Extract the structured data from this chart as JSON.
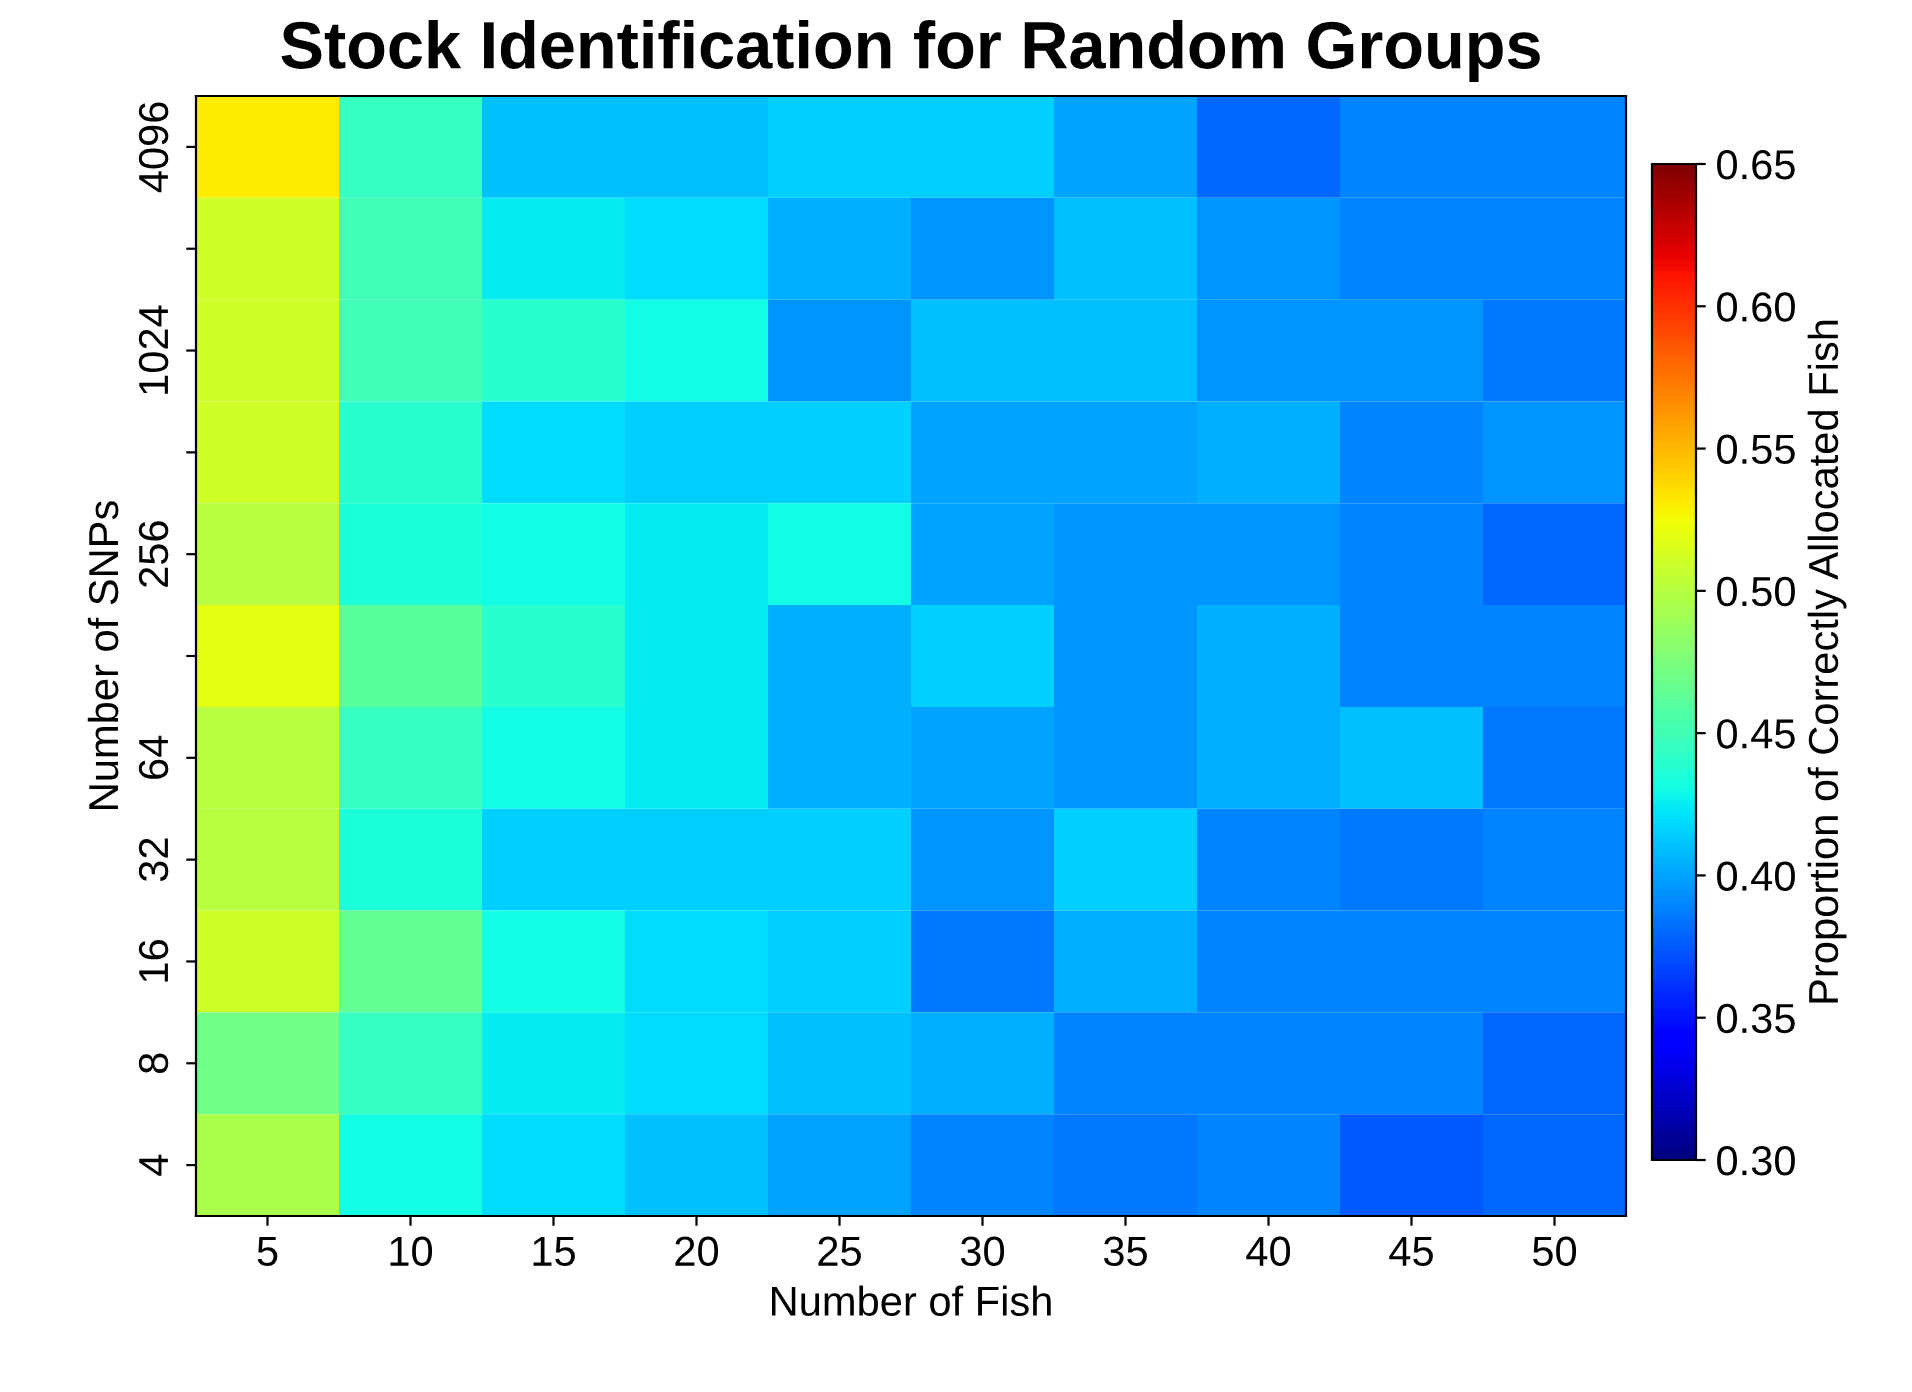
{
  "chart_data": {
    "type": "heatmap",
    "title": "Stock Identification for Random Groups",
    "xlabel": "Number of Fish",
    "ylabel": "Number of SNPs",
    "clabel": "Proportion of Correctly Allocated Fish",
    "categories": [
      "5",
      "10",
      "15",
      "20",
      "25",
      "30",
      "35",
      "40",
      "45",
      "50"
    ],
    "y_categories": [
      "4096",
      null,
      "1024",
      null,
      "256",
      null,
      "64",
      "32",
      "16",
      "8",
      "4"
    ],
    "cells": [
      [
        0.53,
        0.445,
        0.41,
        0.41,
        0.415,
        0.415,
        0.4,
        0.38,
        0.39,
        0.39
      ],
      [
        0.51,
        0.45,
        0.425,
        0.42,
        0.405,
        0.395,
        0.41,
        0.395,
        0.39,
        0.39
      ],
      [
        0.51,
        0.45,
        0.44,
        0.43,
        0.395,
        0.41,
        0.41,
        0.395,
        0.395,
        0.385
      ],
      [
        0.51,
        0.44,
        0.42,
        0.415,
        0.415,
        0.4,
        0.4,
        0.405,
        0.39,
        0.395
      ],
      [
        0.5,
        0.435,
        0.43,
        0.425,
        0.43,
        0.4,
        0.395,
        0.395,
        0.39,
        0.38
      ],
      [
        0.52,
        0.46,
        0.44,
        0.425,
        0.405,
        0.415,
        0.395,
        0.405,
        0.39,
        0.39
      ],
      [
        0.5,
        0.445,
        0.43,
        0.425,
        0.405,
        0.4,
        0.395,
        0.405,
        0.41,
        0.385
      ],
      [
        0.5,
        0.435,
        0.415,
        0.415,
        0.415,
        0.395,
        0.415,
        0.39,
        0.385,
        0.39
      ],
      [
        0.51,
        0.465,
        0.43,
        0.42,
        0.415,
        0.385,
        0.405,
        0.39,
        0.39,
        0.39
      ],
      [
        0.47,
        0.445,
        0.425,
        0.42,
        0.41,
        0.405,
        0.39,
        0.39,
        0.39,
        0.38
      ],
      [
        0.495,
        0.43,
        0.42,
        0.41,
        0.4,
        0.39,
        0.385,
        0.39,
        0.375,
        0.38
      ]
    ],
    "clim": [
      0.3,
      0.65
    ],
    "cticks": [
      {
        "value": 0.3,
        "label": "0.30"
      },
      0.35,
      {
        "value": 0.4,
        "label": "0.40"
      },
      0.45,
      {
        "value": 0.5,
        "label": "0.50"
      },
      0.55,
      {
        "value": 0.6,
        "label": "0.60"
      },
      0.65
    ]
  }
}
